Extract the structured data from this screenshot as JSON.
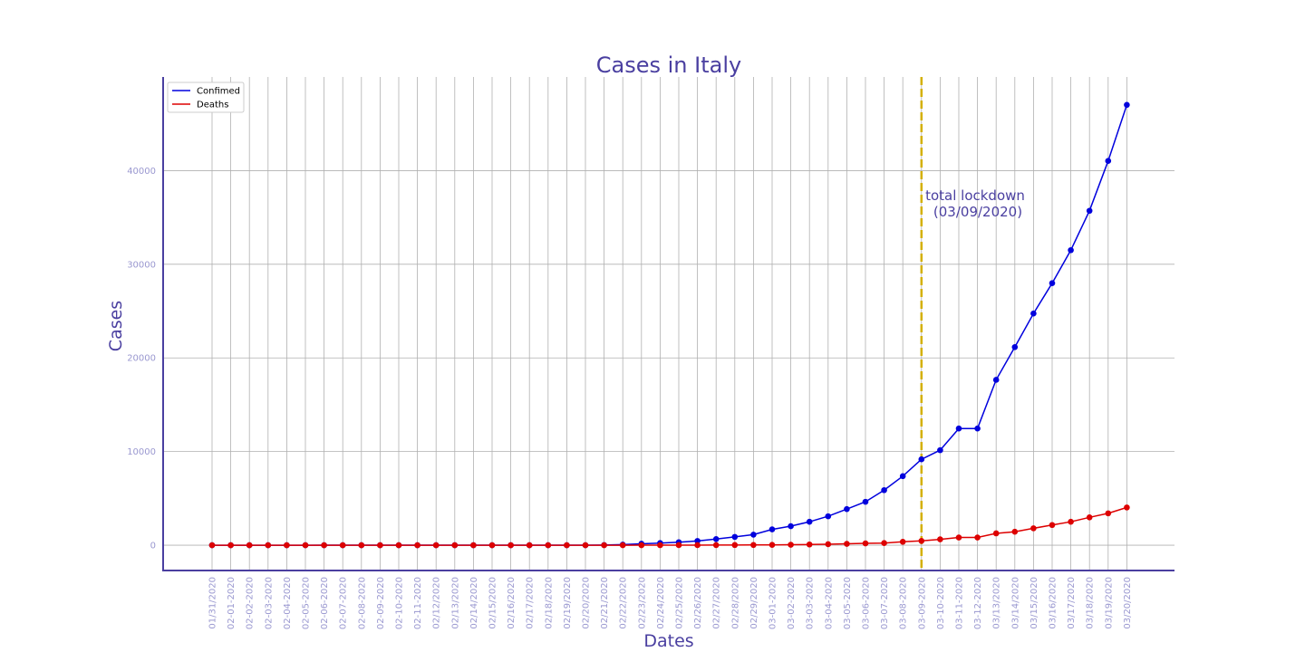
{
  "chart_data": {
    "type": "line",
    "title": "Cases in Italy",
    "xlabel": "Dates",
    "ylabel": "Cases",
    "categories": [
      "01/31/2020",
      "02-01-2020",
      "02-02-2020",
      "02-03-2020",
      "02-04-2020",
      "02-05-2020",
      "02-06-2020",
      "02-07-2020",
      "02-08-2020",
      "02-09-2020",
      "02-10-2020",
      "02-11-2020",
      "02/12/2020",
      "02/13/2020",
      "02/14/2020",
      "02/15/2020",
      "02/16/2020",
      "02/17/2020",
      "02/18/2020",
      "02/19/2020",
      "02/20/2020",
      "02/21/2020",
      "02/22/2020",
      "02/23/2020",
      "02/24/2020",
      "02/25/2020",
      "02/26/2020",
      "02/27/2020",
      "02/28/2020",
      "02/29/2020",
      "03-01-2020",
      "03-02-2020",
      "03-03-2020",
      "03-04-2020",
      "03-05-2020",
      "03-06-2020",
      "03-07-2020",
      "03-08-2020",
      "03-09-2020",
      "03-10-2020",
      "03-11-2020",
      "03-12-2020",
      "03/13/2020",
      "03/14/2020",
      "03/15/2020",
      "03/16/2020",
      "03/17/2020",
      "03/18/2020",
      "03/19/2020",
      "03/20/2020"
    ],
    "series": [
      {
        "name": "Confimed",
        "color": "#0000dd",
        "values": [
          2,
          2,
          2,
          2,
          2,
          2,
          3,
          3,
          3,
          3,
          3,
          3,
          3,
          3,
          3,
          3,
          3,
          3,
          3,
          3,
          3,
          20,
          62,
          155,
          229,
          322,
          453,
          655,
          888,
          1128,
          1694,
          2036,
          2502,
          3089,
          3858,
          4636,
          5883,
          7375,
          9172,
          10149,
          12462,
          12462,
          17660,
          21157,
          24747,
          27980,
          31506,
          35713,
          41035,
          47021
        ]
      },
      {
        "name": "Deaths",
        "color": "#dd0000",
        "values": [
          0,
          0,
          0,
          0,
          0,
          0,
          0,
          0,
          0,
          0,
          0,
          0,
          0,
          0,
          0,
          0,
          0,
          0,
          0,
          0,
          0,
          1,
          2,
          3,
          7,
          10,
          12,
          17,
          21,
          29,
          34,
          52,
          79,
          107,
          148,
          197,
          233,
          366,
          463,
          631,
          827,
          827,
          1266,
          1441,
          1809,
          2158,
          2503,
          2978,
          3405,
          4032
        ]
      }
    ],
    "ylim": [
      -2700,
      50000
    ],
    "yticks": [
      0,
      10000,
      20000,
      30000,
      40000
    ],
    "annotation": {
      "line1": "total lockdown",
      "line2": "(03/09/2020)",
      "date": "03-09-2020",
      "line_color": "#d4b000"
    },
    "legend_position": "top-left",
    "grid": true
  }
}
